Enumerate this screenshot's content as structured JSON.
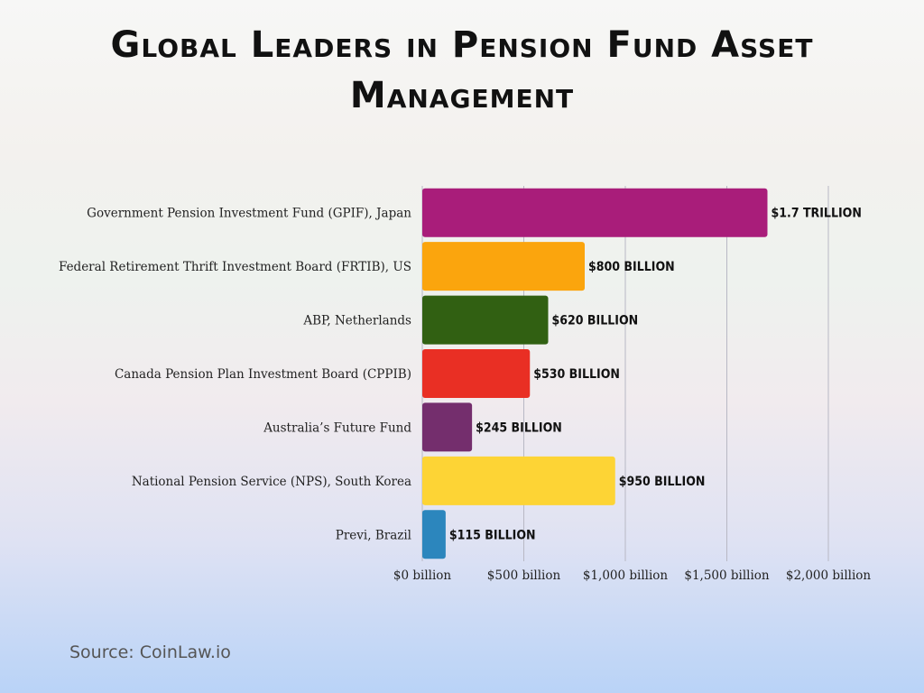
{
  "title": "Global Leaders in Pension Fund Asset Management",
  "source": "Source: CoinLaw.io",
  "chart_data": {
    "type": "bar",
    "orientation": "horizontal",
    "title": "Global Leaders in Pension Fund Asset Management",
    "xlabel": "",
    "ylabel": "",
    "xlim": [
      0,
      2000
    ],
    "grid": true,
    "legend": "none",
    "categories": [
      "Government Pension Investment Fund (GPIF), Japan",
      "Federal Retirement Thrift Investment Board (FRTIB), US",
      "ABP, Netherlands",
      "Canada Pension Plan Investment Board (CPPIB)",
      "Australia’s Future Fund",
      "National Pension Service (NPS), South Korea",
      "Previ, Brazil"
    ],
    "values": [
      1700,
      800,
      620,
      530,
      245,
      950,
      115
    ],
    "value_labels": [
      "$1.7 TRILLION",
      "$800 BILLION",
      "$620 BILLION",
      "$530 BILLION",
      "$245 BILLION",
      "$950 BILLION",
      "$115 BILLION"
    ],
    "colors": [
      "#a91d7a",
      "#fba50d",
      "#316012",
      "#e92f24",
      "#742e6d",
      "#fdd435",
      "#2c86bd"
    ],
    "ticks": [
      0,
      500,
      1000,
      1500,
      2000
    ],
    "tick_labels": [
      "$0 billion",
      "$500 billion",
      "$1,000 billion",
      "$1,500 billion",
      "$2,000 billion"
    ]
  }
}
